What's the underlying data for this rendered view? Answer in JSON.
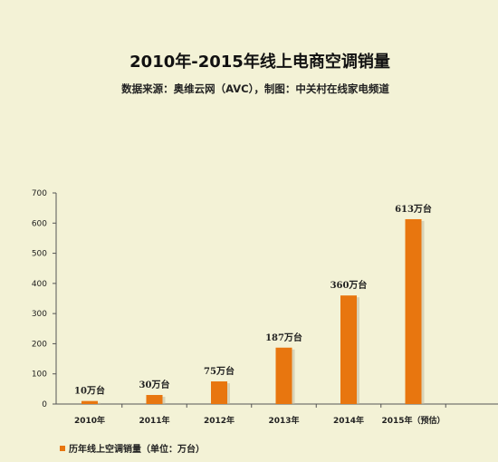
{
  "title": "2010年-2015年线上电商空调销量",
  "subtitle": "数据来源：奥维云网（AVC），制图：中关村在线家电频道",
  "colors": {
    "bar": "#e8760f",
    "bar_shade": "#c0b9a0",
    "background": "#f3f2d6",
    "axis": "#555555"
  },
  "chart_data": {
    "type": "bar",
    "categories": [
      "2010年",
      "2011年",
      "2012年",
      "2013年",
      "2014年",
      "2015年（预估）"
    ],
    "series": [
      {
        "name": "历年线上空调销量（单位：万台）",
        "values": [
          10,
          30,
          75,
          187,
          360,
          613
        ]
      }
    ],
    "data_labels": [
      "10万台",
      "30万台",
      "75万台",
      "187万台",
      "360万台",
      "613万台"
    ],
    "ylim": [
      0,
      700
    ],
    "yticks": [
      0,
      100,
      200,
      300,
      400,
      500,
      600,
      700
    ],
    "grid": false,
    "legend": "bottom-left"
  }
}
